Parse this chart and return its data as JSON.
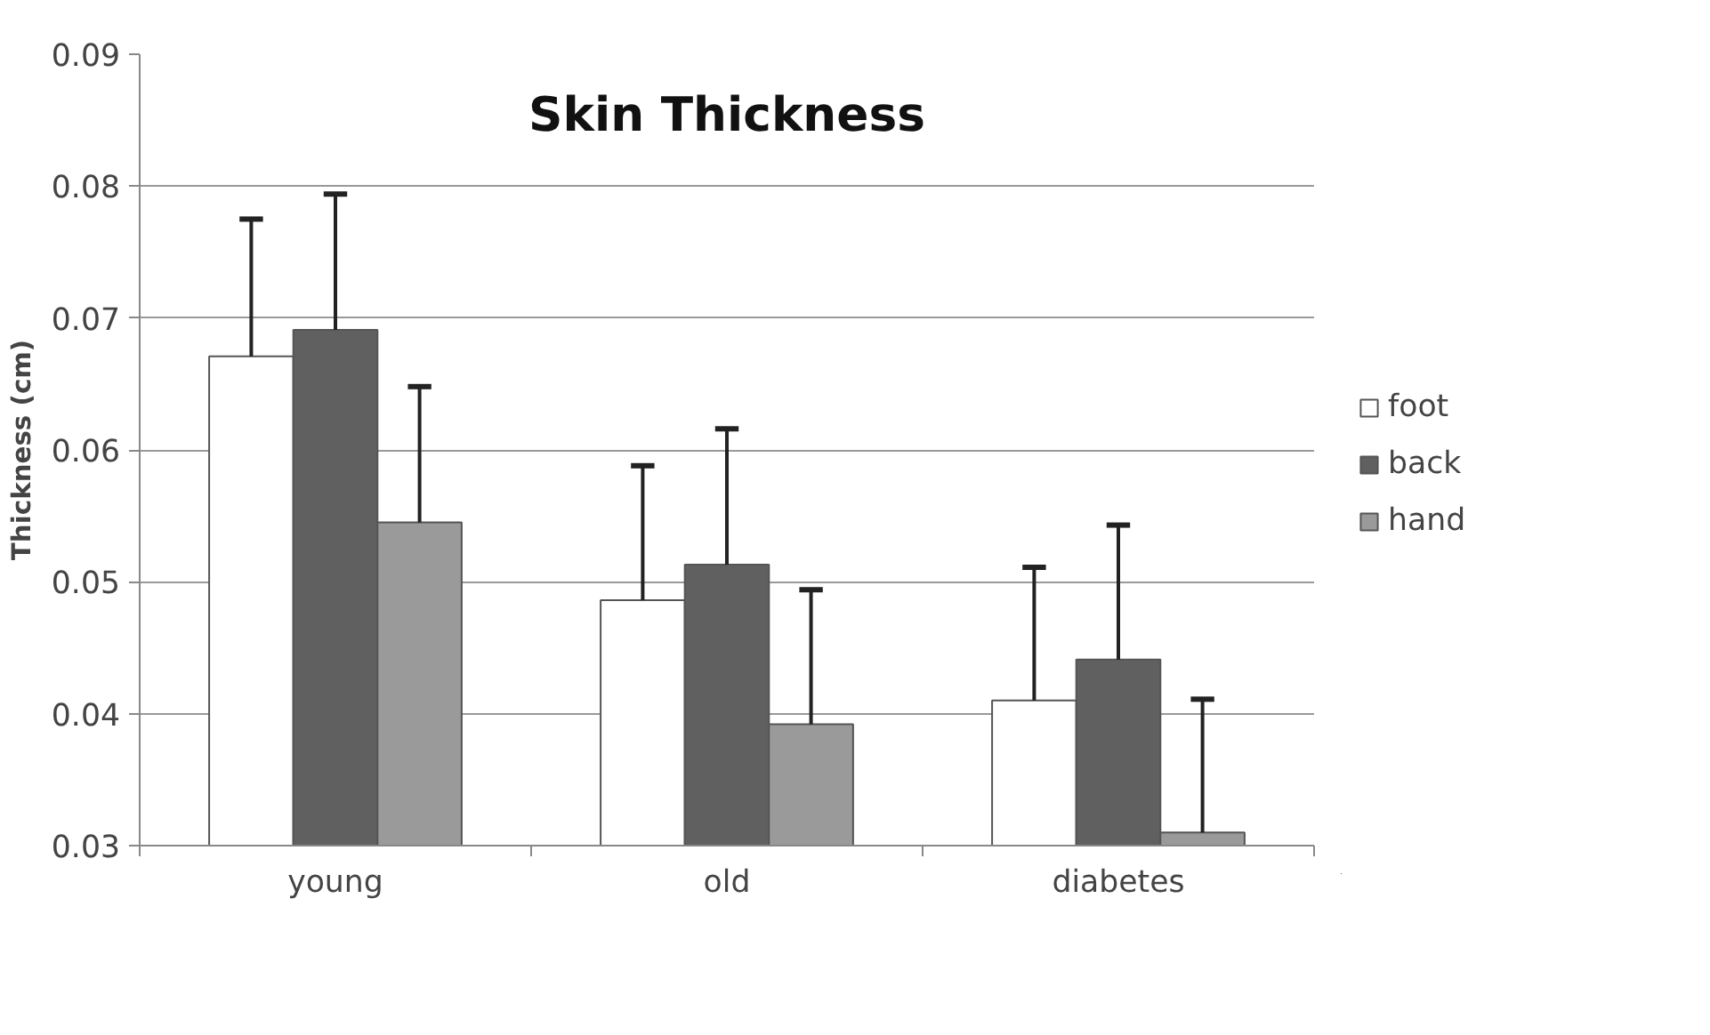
{
  "chart_data": {
    "type": "bar",
    "title": "Skin Thickness",
    "ylabel": "Thickness (cm)",
    "categories": [
      "young",
      "old",
      "diabetes"
    ],
    "series": [
      {
        "name": "foot",
        "color": "#ffffff",
        "values": [
          0.0671,
          0.0486,
          0.041
        ],
        "errors": [
          [
            0.0671,
            0.0775
          ],
          [
            0.0486,
            0.0588
          ],
          [
            0.041,
            0.0511
          ]
        ]
      },
      {
        "name": "back",
        "color": "#606060",
        "values": [
          0.0691,
          0.0513,
          0.0441
        ],
        "errors": [
          [
            0.0691,
            0.0794
          ],
          [
            0.0513,
            0.0616
          ],
          [
            0.0441,
            0.0543
          ]
        ]
      },
      {
        "name": "hand",
        "color": "#9a9a9a",
        "values": [
          0.0545,
          0.0392,
          0.031
        ],
        "errors": [
          [
            0.0545,
            0.0648
          ],
          [
            0.0392,
            0.0494
          ],
          [
            0.031,
            0.0411
          ]
        ]
      }
    ],
    "ylim": [
      0.03,
      0.09
    ],
    "yticks": [
      0.03,
      0.04,
      0.05,
      0.06,
      0.07,
      0.08,
      0.09
    ],
    "grid": "y",
    "legend": "right"
  }
}
